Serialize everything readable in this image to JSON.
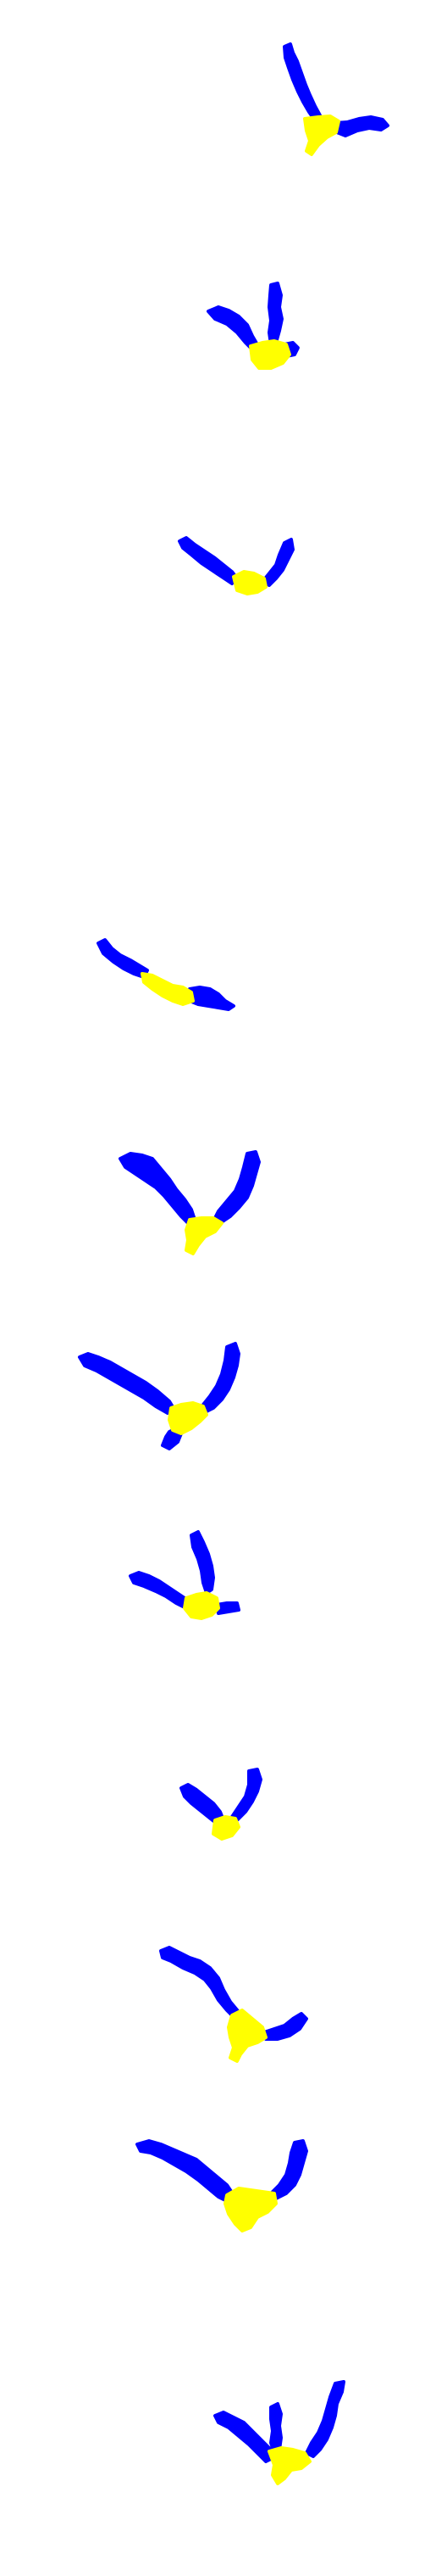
{
  "background_color": "#ffffff",
  "colors": {
    "branch": "#0000ff",
    "junction": "#ffff00"
  },
  "figures": [
    {
      "name": "figure-1",
      "branches": 3
    },
    {
      "name": "figure-2",
      "branches": 3
    },
    {
      "name": "figure-3",
      "branches": 2
    },
    {
      "name": "figure-4",
      "branches": 2
    },
    {
      "name": "figure-5",
      "branches": 2
    },
    {
      "name": "figure-6",
      "branches": 3
    },
    {
      "name": "figure-7",
      "branches": 3
    },
    {
      "name": "figure-8",
      "branches": 2
    },
    {
      "name": "figure-9",
      "branches": 2
    },
    {
      "name": "figure-10",
      "branches": 2
    },
    {
      "name": "figure-11",
      "branches": 3
    }
  ]
}
